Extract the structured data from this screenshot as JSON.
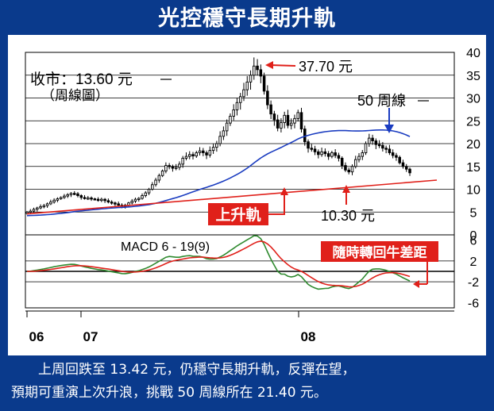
{
  "title": "光控穩守長期升軌",
  "caption": {
    "line1": "上周回跌至 13.42 元，仍穩守長期升軌，反彈在望，",
    "line2": "預期可重演上次升浪，挑戰 50 周線所在 21.40 元。"
  },
  "colors": {
    "background": "#0a3a8c",
    "candle": "#000000",
    "ma50": "#1a3cc0",
    "trendline": "#e0201a",
    "macd": "#2f8a2f",
    "signal": "#e0201a",
    "label_box": "#e0201a"
  },
  "chart_data": [
    {
      "type": "candlestick",
      "title": "",
      "ylim": [
        0,
        40
      ],
      "yticks": [
        "0",
        "5",
        "10",
        "15",
        "20",
        "25",
        "30",
        "35",
        "40"
      ],
      "x_ticks": [
        "06",
        "07",
        "08"
      ],
      "grid": "horizontal",
      "annotations": {
        "close": "收市：13.60 元",
        "chart_type": "（周線圖）",
        "high": "37.70 元",
        "ma_label": "50 周線",
        "trend_label": "上升軌",
        "low": "10.30 元"
      },
      "weekly_close": [
        5.0,
        5.2,
        5.6,
        5.9,
        6.2,
        6.4,
        6.8,
        7.2,
        7.6,
        7.9,
        8.2,
        8.5,
        8.8,
        9.1,
        9.0,
        8.6,
        8.2,
        8.0,
        8.1,
        7.9,
        7.8,
        7.6,
        7.8,
        7.5,
        7.2,
        7.0,
        6.8,
        6.5,
        6.2,
        6.5,
        7.0,
        7.4,
        7.8,
        8.0,
        8.6,
        9.2,
        10.0,
        11.0,
        12.0,
        13.0,
        14.0,
        15.2,
        15.0,
        14.6,
        14.8,
        15.5,
        16.8,
        17.2,
        17.6,
        17.3,
        18.0,
        18.4,
        18.0,
        17.5,
        18.5,
        19.2,
        20.0,
        21.6,
        22.8,
        24.5,
        26.0,
        27.4,
        29.0,
        30.3,
        31.8,
        33.5,
        35.0,
        37.0,
        36.2,
        34.8,
        31.5,
        28.5,
        26.5,
        25.2,
        23.4,
        24.6,
        26.2,
        24.0,
        24.5,
        25.5,
        26.8,
        23.2,
        20.4,
        19.0,
        18.8,
        18.2,
        17.6,
        18.2,
        17.8,
        17.2,
        18.0,
        17.4,
        16.8,
        15.2,
        14.2,
        13.8,
        15.0,
        16.5,
        17.2,
        18.0,
        20.0,
        21.2,
        20.6,
        19.8,
        19.6,
        19.0,
        18.8,
        18.0,
        17.4,
        17.0,
        15.8,
        15.0,
        14.4,
        13.6
      ],
      "ma50_range": [
        4.2,
        21.4
      ],
      "trendline": {
        "from": 4.6,
        "to": 12.0
      },
      "macd": {
        "title": "MACD 6 - 19(9)",
        "ylim": [
          -7,
          7
        ],
        "yticks": [
          "6",
          "2",
          "-2",
          "-6"
        ],
        "box_label": "隨時轉回牛差距"
      }
    }
  ]
}
